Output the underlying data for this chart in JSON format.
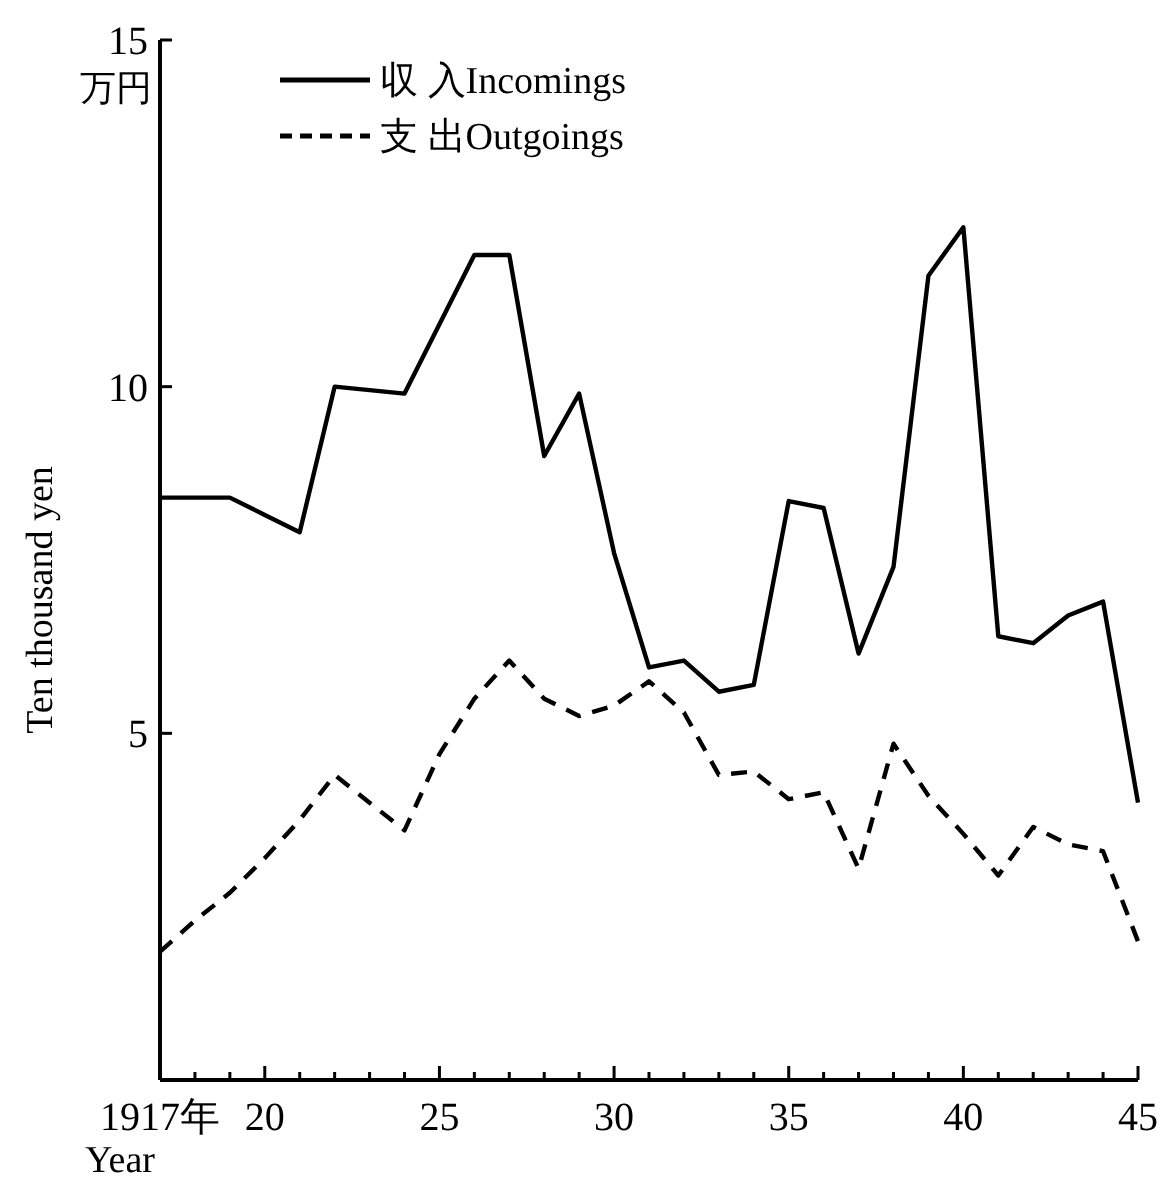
{
  "chart_data": {
    "type": "line",
    "xlabel": "Year",
    "ylabel": "Ten thousand yen",
    "annotations": [
      "万円"
    ],
    "x": [
      1917,
      1918,
      1919,
      1920,
      1921,
      1922,
      1923,
      1924,
      1925,
      1926,
      1927,
      1928,
      1929,
      1930,
      1931,
      1932,
      1933,
      1934,
      1935,
      1936,
      1937,
      1938,
      1939,
      1940,
      1941,
      1942,
      1943,
      1944,
      1945
    ],
    "series": [
      {
        "name": "収 入Incomings",
        "color": "#000000",
        "line_style": "solid",
        "values": [
          8.4,
          8.4,
          8.4,
          8.15,
          7.9,
          10.0,
          9.95,
          9.9,
          10.9,
          11.9,
          11.9,
          9.0,
          9.9,
          7.6,
          5.95,
          6.05,
          5.6,
          5.7,
          8.35,
          8.25,
          6.15,
          7.4,
          11.6,
          12.3,
          6.4,
          6.3,
          6.7,
          6.9,
          4.0
        ]
      },
      {
        "name": "支 出Outgoings",
        "color": "#000000",
        "line_style": "dashed",
        "values": [
          1.85,
          2.3,
          2.7,
          3.2,
          3.75,
          4.4,
          4.0,
          3.6,
          4.7,
          5.5,
          6.05,
          5.5,
          5.25,
          5.4,
          5.75,
          5.3,
          4.4,
          4.45,
          4.05,
          4.15,
          3.05,
          4.85,
          4.1,
          3.55,
          2.95,
          3.65,
          3.4,
          3.3,
          2.0
        ]
      }
    ],
    "xlim": [
      1917,
      1945
    ],
    "ylim": [
      0,
      15
    ],
    "xticks": [
      {
        "value": 1917,
        "label": "1917年"
      },
      {
        "value": 1918,
        "label": null
      },
      {
        "value": 1919,
        "label": null
      },
      {
        "value": 1920,
        "label": "20"
      },
      {
        "value": 1921,
        "label": null
      },
      {
        "value": 1922,
        "label": null
      },
      {
        "value": 1923,
        "label": null
      },
      {
        "value": 1924,
        "label": null
      },
      {
        "value": 1925,
        "label": "25"
      },
      {
        "value": 1926,
        "label": null
      },
      {
        "value": 1927,
        "label": null
      },
      {
        "value": 1928,
        "label": null
      },
      {
        "value": 1929,
        "label": null
      },
      {
        "value": 1930,
        "label": "30"
      },
      {
        "value": 1931,
        "label": null
      },
      {
        "value": 1932,
        "label": null
      },
      {
        "value": 1933,
        "label": null
      },
      {
        "value": 1934,
        "label": null
      },
      {
        "value": 1935,
        "label": "35"
      },
      {
        "value": 1936,
        "label": null
      },
      {
        "value": 1937,
        "label": null
      },
      {
        "value": 1938,
        "label": null
      },
      {
        "value": 1939,
        "label": null
      },
      {
        "value": 1940,
        "label": "40"
      },
      {
        "value": 1941,
        "label": null
      },
      {
        "value": 1942,
        "label": null
      },
      {
        "value": 1943,
        "label": null
      },
      {
        "value": 1944,
        "label": null
      },
      {
        "value": 1945,
        "label": "45"
      }
    ],
    "yticks": [
      5,
      10,
      15
    ],
    "grid": false,
    "legend": "top left",
    "marker": "none"
  }
}
